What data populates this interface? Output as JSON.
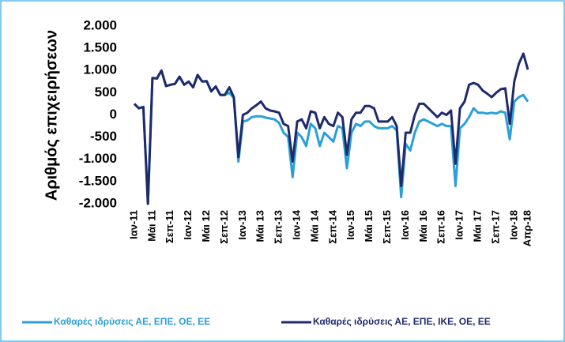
{
  "chart_data": {
    "type": "line",
    "y_label": "Αριθμός επιχειρήσεων",
    "categories": [
      "Ιαν-11",
      null,
      null,
      null,
      "Μάι 11",
      null,
      null,
      null,
      "Σεπ-11",
      null,
      null,
      null,
      "Ιαν-12",
      null,
      null,
      null,
      "Μάι 12",
      null,
      null,
      null,
      "Σεπ-12",
      null,
      null,
      null,
      "Ιαν-13",
      null,
      null,
      null,
      "Μάι 13",
      null,
      null,
      null,
      "Σεπ-13",
      null,
      null,
      null,
      "Ιαν-14",
      null,
      null,
      null,
      "Μάι 14",
      null,
      null,
      null,
      "Σεπ-14",
      null,
      null,
      null,
      "Ιαν-15",
      null,
      null,
      null,
      "Μάι 15",
      null,
      null,
      null,
      "Σεπ-15",
      null,
      null,
      null,
      "Ιαν-16",
      null,
      null,
      null,
      "Μάι 16",
      null,
      null,
      null,
      "Σεπ-16",
      null,
      null,
      null,
      "Ιαν-17",
      null,
      null,
      null,
      "Μάι 17",
      null,
      null,
      null,
      "Σεπ-17",
      null,
      null,
      null,
      "Ιαν-18",
      null,
      null,
      "Απρ-18"
    ],
    "series": [
      {
        "name": "Καθαρές ιδρύσεις ΑΕ, ΕΠΕ,  ΟΕ, ΕΕ",
        "color": "#2b9fd8",
        "values": [
          250,
          150,
          180,
          -2000,
          830,
          820,
          1000,
          650,
          680,
          700,
          860,
          680,
          750,
          620,
          900,
          750,
          760,
          530,
          640,
          450,
          450,
          500,
          380,
          -1050,
          -150,
          -120,
          -50,
          -30,
          -30,
          -60,
          -80,
          -100,
          -180,
          -400,
          -500,
          -1400,
          -400,
          -500,
          -700,
          -200,
          -300,
          -700,
          -400,
          -500,
          -600,
          -250,
          -300,
          -1200,
          -400,
          -200,
          -250,
          -150,
          -150,
          -250,
          -300,
          -300,
          -300,
          -250,
          -350,
          -1850,
          -650,
          -800,
          -400,
          -150,
          -100,
          -150,
          -200,
          -250,
          -200,
          -250,
          -250,
          -1600,
          -300,
          -200,
          -50,
          150,
          50,
          50,
          30,
          50,
          30,
          80,
          50,
          -550,
          300,
          400,
          450,
          300
        ]
      },
      {
        "name": "Καθαρές ιδρύσεις ΑΕ, ΕΠΕ, ΙΚΕ, ΟΕ, ΕΕ",
        "color": "#1f2a6b",
        "values": [
          250,
          150,
          180,
          -2000,
          830,
          820,
          1000,
          650,
          680,
          700,
          860,
          680,
          750,
          620,
          900,
          750,
          760,
          530,
          640,
          450,
          450,
          620,
          400,
          -950,
          0,
          50,
          150,
          220,
          300,
          150,
          100,
          80,
          50,
          -200,
          -250,
          -1050,
          -150,
          -100,
          -300,
          80,
          50,
          -300,
          -50,
          -200,
          -250,
          50,
          -50,
          -900,
          -100,
          50,
          50,
          200,
          200,
          150,
          -150,
          -150,
          -150,
          -50,
          -250,
          -1600,
          -400,
          -400,
          0,
          250,
          250,
          150,
          50,
          -50,
          50,
          0,
          100,
          -1100,
          150,
          300,
          680,
          720,
          680,
          550,
          480,
          400,
          500,
          580,
          600,
          -200,
          750,
          1150,
          1380,
          1020
        ]
      }
    ],
    "ylim": [
      -2000,
      2000
    ],
    "yticks": [
      {
        "value": 2000,
        "label": "2.000"
      },
      {
        "value": 1500,
        "label": "1.500"
      },
      {
        "value": 1000,
        "label": "1.000"
      },
      500,
      0,
      -500,
      {
        "value": -1000,
        "label": "-1.000"
      },
      {
        "value": -1500,
        "label": "-1.500"
      },
      {
        "value": -2000,
        "label": "-2.000"
      }
    ],
    "grid": false,
    "legend": "bottom"
  }
}
